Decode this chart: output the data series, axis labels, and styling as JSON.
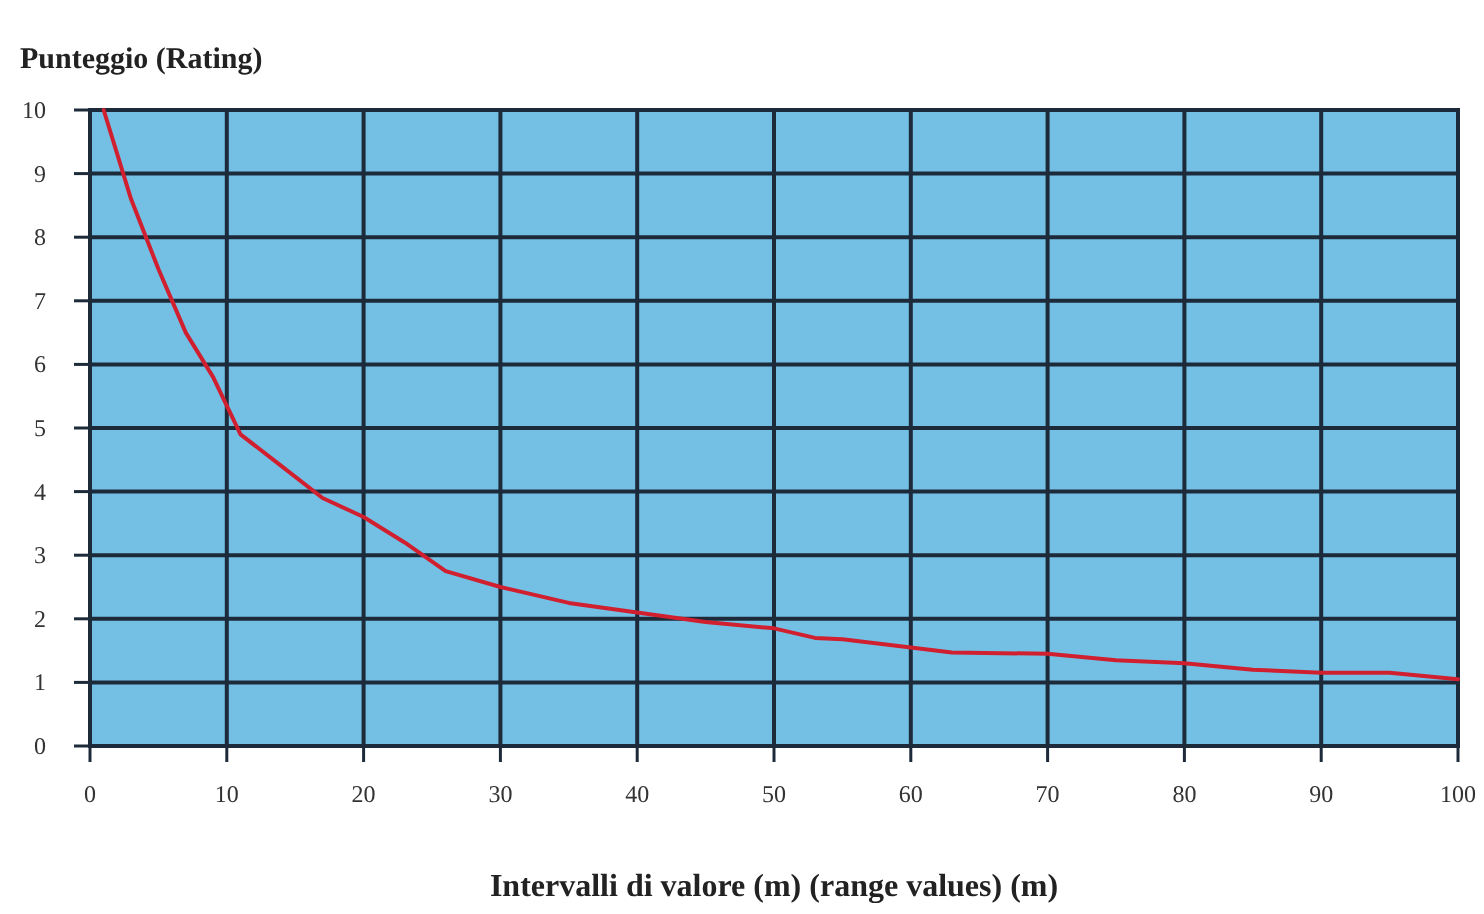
{
  "chart_data": {
    "type": "line",
    "ylabel": "Punteggio (Rating)",
    "xlabel": "Intervalli di valore (m) (range values) (m)",
    "xlim": [
      0,
      100
    ],
    "ylim": [
      0,
      10
    ],
    "xticks": [
      0,
      10,
      20,
      30,
      40,
      50,
      60,
      70,
      80,
      90,
      100
    ],
    "yticks": [
      0,
      1,
      2,
      3,
      4,
      5,
      6,
      7,
      8,
      9,
      10
    ],
    "grid": true,
    "series": [
      {
        "color": "#d02030",
        "x": [
          1,
          3,
          5,
          7,
          9,
          11,
          14,
          17,
          20,
          23,
          26,
          30,
          35,
          40,
          45,
          50,
          53,
          55,
          60,
          63,
          70,
          75,
          80,
          85,
          90,
          95,
          100
        ],
        "values": [
          10,
          8.6,
          7.5,
          6.5,
          5.8,
          4.9,
          4.4,
          3.9,
          3.6,
          3.2,
          2.75,
          2.5,
          2.25,
          2.1,
          1.95,
          1.85,
          1.7,
          1.68,
          1.55,
          1.47,
          1.45,
          1.35,
          1.3,
          1.2,
          1.15,
          1.15,
          1.05
        ]
      }
    ]
  }
}
